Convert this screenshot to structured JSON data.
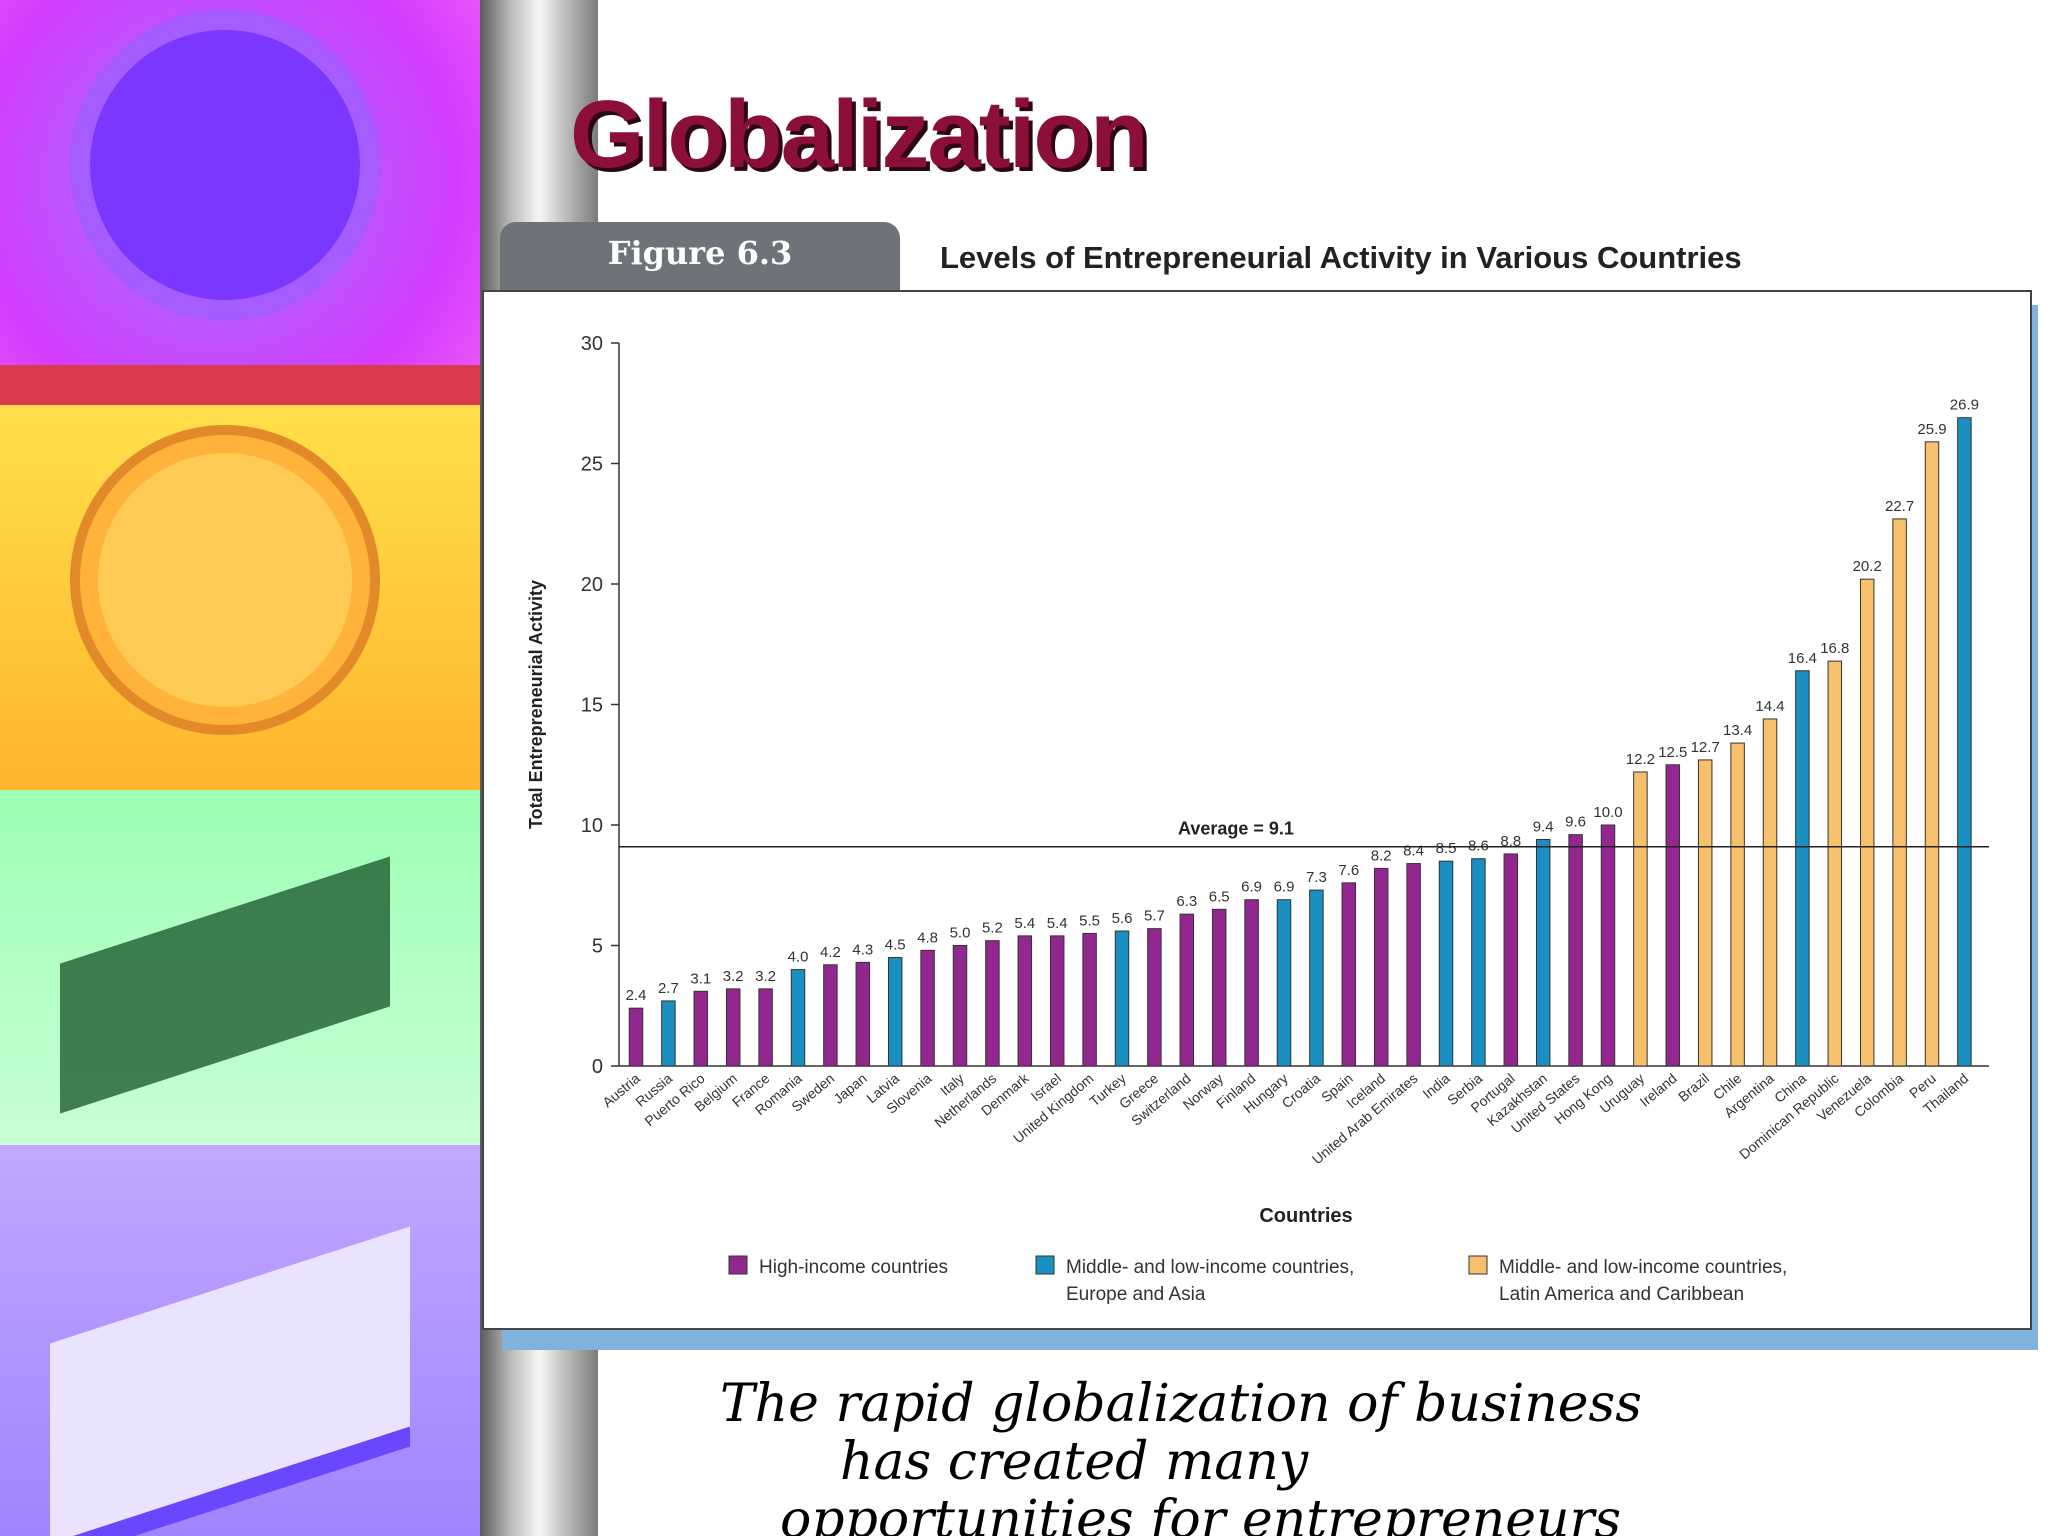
{
  "slide": {
    "title": "Globalization",
    "caption_lines": [
      "The rapid globalization of business",
      "has created many",
      "opportunities for entrepreneurs"
    ]
  },
  "figure": {
    "label": "Figure 6.3",
    "title": "Levels of Entrepreneurial Activity in Various Countries"
  },
  "colors": {
    "high_income": "#92278f",
    "middle_low_europe_asia": "#1a8fc2",
    "middle_low_latam": "#f7c06d"
  },
  "chart_data": {
    "type": "bar",
    "xlabel": "Countries",
    "ylabel": "Total Entrepreneurial Activity",
    "ylim": [
      0,
      30
    ],
    "yticks": [
      0,
      5,
      10,
      15,
      20,
      25,
      30
    ],
    "grid": false,
    "average": {
      "value": 9.1,
      "label": "Average = 9.1"
    },
    "legend_position": "bottom",
    "groups": [
      {
        "key": "H",
        "label": "High-income countries",
        "color": "#92278f"
      },
      {
        "key": "E",
        "label": "Middle- and low-income countries, Europe and Asia",
        "label_lines": [
          "Middle- and low-income countries,",
          "Europe and Asia"
        ],
        "color": "#1a8fc2"
      },
      {
        "key": "L",
        "label": "Middle- and low-income countries, Latin America and Caribbean",
        "label_lines": [
          "Middle- and low-income countries,",
          "Latin America and Caribbean"
        ],
        "color": "#f7c06d"
      }
    ],
    "categories": [
      "Austria",
      "Russia",
      "Puerto Rico",
      "Belgium",
      "France",
      "Romania",
      "Sweden",
      "Japan",
      "Latvia",
      "Slovenia",
      "Italy",
      "Netherlands",
      "Denmark",
      "Israel",
      "United Kingdom",
      "Turkey",
      "Greece",
      "Switzerland",
      "Norway",
      "Finland",
      "Hungary",
      "Croatia",
      "Spain",
      "Iceland",
      "United Arab Emirates",
      "India",
      "Serbia",
      "Portugal",
      "Kazakhstan",
      "United States",
      "Hong Kong",
      "Uruguay",
      "Ireland",
      "Brazil",
      "Chile",
      "Argentina",
      "China",
      "Dominican Republic",
      "Venezuela",
      "Colombia",
      "Peru",
      "Thailand"
    ],
    "values": [
      2.4,
      2.7,
      3.1,
      3.2,
      3.2,
      4.0,
      4.2,
      4.3,
      4.5,
      4.8,
      5.0,
      5.2,
      5.4,
      5.4,
      5.5,
      5.6,
      5.7,
      6.3,
      6.5,
      6.9,
      6.9,
      7.3,
      7.6,
      8.2,
      8.4,
      8.5,
      8.6,
      8.8,
      9.4,
      9.6,
      10.0,
      12.2,
      12.5,
      12.7,
      13.4,
      14.4,
      16.4,
      16.8,
      20.2,
      22.7,
      25.9,
      26.9
    ],
    "value_labels": [
      "2.4",
      "2.7",
      "3.1",
      "3.2",
      "3.2",
      "4.0",
      "4.2",
      "4.3",
      "4.5",
      "4.8",
      "5.0",
      "5.2",
      "5.4",
      "5.4",
      "5.5",
      "5.6",
      "5.7",
      "6.3",
      "6.5",
      "6.9",
      "6.9",
      "7.3",
      "7.6",
      "8.2",
      "8.4",
      "8.5",
      "8.6",
      "8.8",
      "9.4",
      "9.6",
      "10.0",
      "12.2",
      "12.5",
      "12.7",
      "13.4",
      "14.4",
      "16.4",
      "16.8",
      "20.2",
      "22.7",
      "25.9",
      "26.9"
    ],
    "bar_groups": [
      "H",
      "E",
      "H",
      "H",
      "H",
      "E",
      "H",
      "H",
      "E",
      "H",
      "H",
      "H",
      "H",
      "H",
      "H",
      "E",
      "H",
      "H",
      "H",
      "H",
      "E",
      "E",
      "H",
      "H",
      "H",
      "E",
      "E",
      "H",
      "E",
      "H",
      "H",
      "L",
      "H",
      "L",
      "L",
      "L",
      "E",
      "L",
      "L",
      "L",
      "L",
      "E"
    ]
  }
}
